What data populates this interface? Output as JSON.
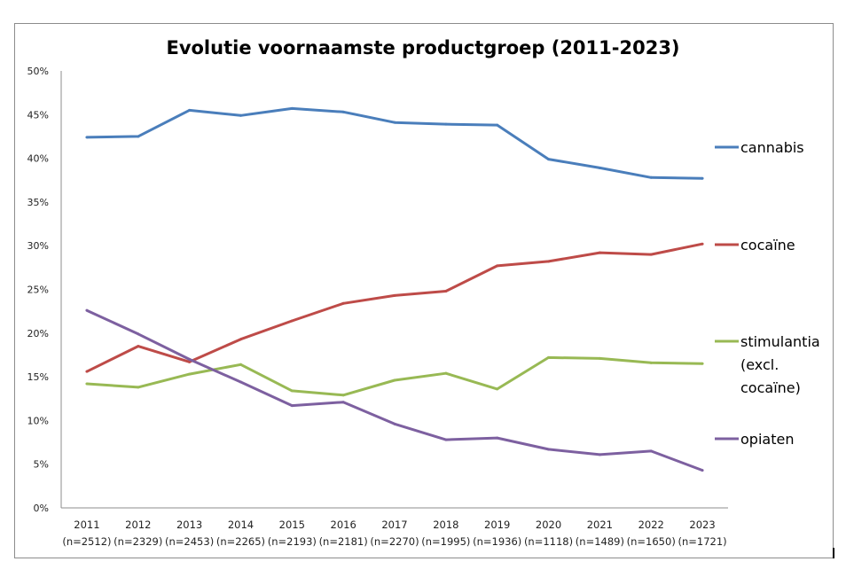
{
  "chart_data": {
    "type": "line",
    "title": "Evolutie voornaamste productgroep (2011-2023)",
    "xlabel": "",
    "ylabel": "",
    "ylim": [
      0,
      50
    ],
    "ytick_step": 5,
    "ytick_labels": [
      "0%",
      "5%",
      "10%",
      "15%",
      "20%",
      "25%",
      "30%",
      "35%",
      "40%",
      "45%",
      "50%"
    ],
    "grid": false,
    "legend_position": "right",
    "categories": [
      "2011",
      "2012",
      "2013",
      "2014",
      "2015",
      "2016",
      "2017",
      "2018",
      "2019",
      "2020",
      "2021",
      "2022",
      "2023"
    ],
    "category_counts": [
      "(n=2512)",
      "(n=2329)",
      "(n=2453)",
      "(n=2265)",
      "(n=2193)",
      "(n=2181)",
      "(n=2270)",
      "(n=1995)",
      "(n=1936)",
      "(n=1118)",
      "(n=1489)",
      "(n=1650)",
      "(n=1721)"
    ],
    "series": [
      {
        "name": "cannabis",
        "legend_lines": [
          "cannabis"
        ],
        "color": "#4a7ebb",
        "values": [
          42.4,
          42.5,
          45.5,
          44.9,
          45.7,
          45.3,
          44.1,
          43.9,
          43.8,
          39.9,
          38.9,
          37.8,
          37.7
        ]
      },
      {
        "name": "cocaïne",
        "legend_lines": [
          "cocaïne"
        ],
        "color": "#be4b48",
        "values": [
          15.6,
          18.5,
          16.7,
          19.3,
          21.4,
          23.4,
          24.3,
          24.8,
          27.7,
          28.2,
          29.2,
          29.0,
          30.2
        ]
      },
      {
        "name": "stimulantia (excl. cocaïne)",
        "legend_lines": [
          "stimulantia",
          "(excl.",
          "cocaïne)"
        ],
        "color": "#98b954",
        "values": [
          14.2,
          13.8,
          15.3,
          16.4,
          13.4,
          12.9,
          14.6,
          15.4,
          13.6,
          17.2,
          17.1,
          16.6,
          16.5
        ]
      },
      {
        "name": "opiaten",
        "legend_lines": [
          "opiaten"
        ],
        "color": "#7d60a0",
        "values": [
          22.6,
          19.9,
          17.0,
          14.4,
          11.7,
          12.1,
          9.6,
          7.8,
          8.0,
          6.7,
          6.1,
          6.5,
          4.3
        ]
      }
    ]
  }
}
